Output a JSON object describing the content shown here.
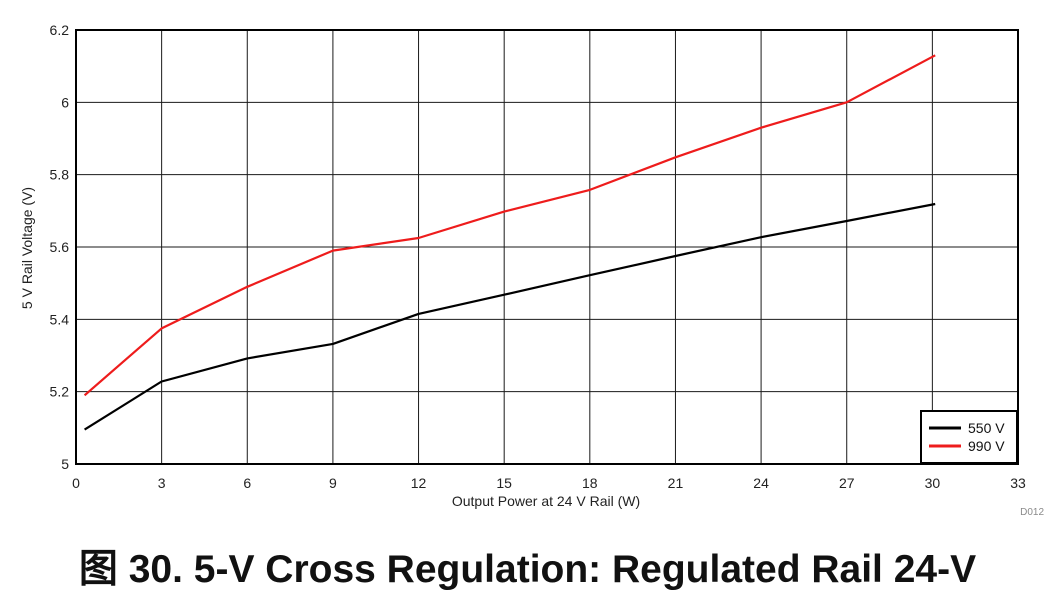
{
  "chart_data": {
    "type": "line",
    "title": "图 30. 5-V Cross Regulation: Regulated Rail 24-V",
    "xlabel": "Output Power at 24 V Rail (W)",
    "ylabel": "5 V Rail Voltage (V)",
    "xlim": [
      0,
      33
    ],
    "ylim": [
      5,
      6.2
    ],
    "xticks": [
      0,
      3,
      6,
      9,
      12,
      15,
      18,
      21,
      24,
      27,
      30,
      33
    ],
    "yticks": [
      5,
      5.2,
      5.4,
      5.6,
      5.8,
      6,
      6.2
    ],
    "ytick_labels": [
      "5",
      "5.2",
      "5.4",
      "5.6",
      "5.8",
      "6",
      "6.2"
    ],
    "grid": true,
    "legend_position": "bottom-right",
    "figure_id": "D012",
    "series": [
      {
        "name": "550 V",
        "color": "#000000",
        "points": [
          [
            0.3,
            5.095
          ],
          [
            3,
            5.228
          ],
          [
            6,
            5.292
          ],
          [
            9,
            5.332
          ],
          [
            12,
            5.415
          ],
          [
            15,
            5.468
          ],
          [
            18,
            5.522
          ],
          [
            21,
            5.575
          ],
          [
            24,
            5.627
          ],
          [
            27,
            5.672
          ],
          [
            30.1,
            5.719
          ]
        ]
      },
      {
        "name": "990 V",
        "color": "#ee1c1c",
        "points": [
          [
            0.3,
            5.19
          ],
          [
            3,
            5.375
          ],
          [
            6,
            5.49
          ],
          [
            9,
            5.59
          ],
          [
            12,
            5.625
          ],
          [
            15,
            5.698
          ],
          [
            18,
            5.758
          ],
          [
            21,
            5.848
          ],
          [
            24,
            5.93
          ],
          [
            27,
            6.0
          ],
          [
            30.1,
            6.13
          ]
        ]
      }
    ]
  }
}
